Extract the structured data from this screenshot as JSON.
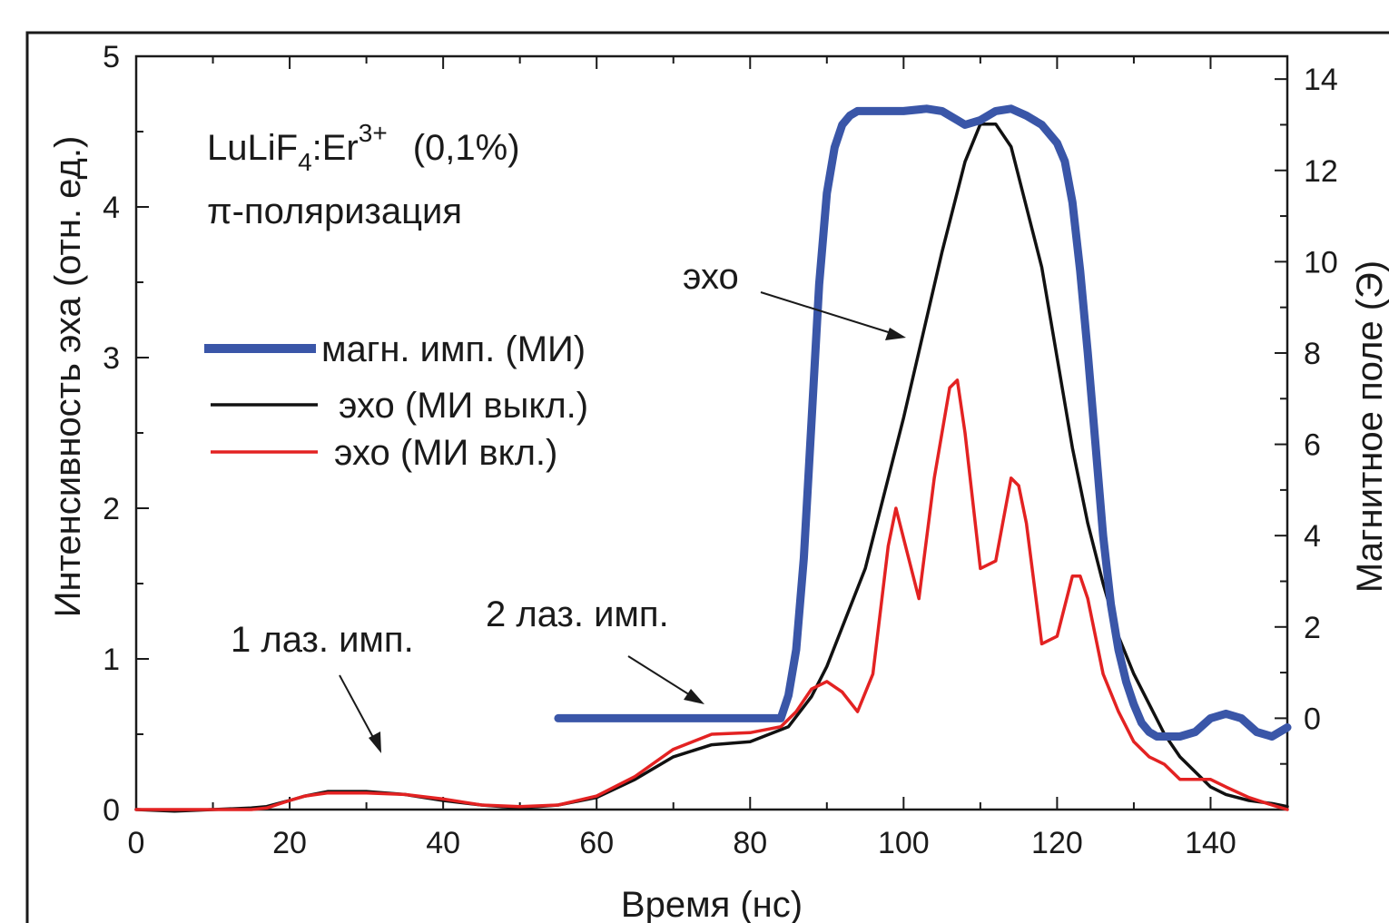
{
  "chart_data": {
    "type": "line",
    "xlabel": "Время (нс)",
    "ylabel": "Интенсивность эха (отн. ед.)",
    "y2label": "Магнитное поле (Э)",
    "xlim": [
      0,
      150
    ],
    "ylim": [
      0,
      5
    ],
    "y2lim": [
      -2,
      14.5
    ],
    "x_ticks": [
      0,
      20,
      40,
      60,
      80,
      100,
      120,
      140
    ],
    "y_ticks": [
      0,
      1,
      2,
      3,
      4,
      5
    ],
    "y2_ticks": [
      0,
      2,
      4,
      6,
      8,
      10,
      12,
      14
    ],
    "grid": false,
    "legend_position": "middle-left",
    "annotations": {
      "sample_base": "LuLiF",
      "sample_sub": "4",
      "sample_mid": ":Er",
      "sample_sup": "3+",
      "sample_conc": "(0,1%)",
      "polarization": "π-поляризация",
      "echo": "эхо",
      "laser1": "1 лаз. имп.",
      "laser2": "2 лаз. имп."
    },
    "series": [
      {
        "name": "магн. имп. (МИ)",
        "axis": "right",
        "color": "#3a56a8",
        "x": [
          55,
          60,
          70,
          80,
          84,
          85,
          86,
          87,
          88,
          89,
          90,
          91,
          92,
          93,
          94,
          95,
          100,
          103,
          105,
          107,
          108,
          110,
          112,
          114,
          116,
          118,
          120,
          121,
          122,
          123,
          124,
          125,
          126,
          127,
          128,
          129,
          130,
          131,
          132,
          133,
          134,
          136,
          138,
          140,
          142,
          144,
          146,
          148,
          150
        ],
        "y": [
          0,
          0,
          0,
          0,
          0,
          0.5,
          1.5,
          3.5,
          6.5,
          9.5,
          11.5,
          12.5,
          13.0,
          13.2,
          13.3,
          13.3,
          13.3,
          13.35,
          13.3,
          13.1,
          13.0,
          13.1,
          13.3,
          13.35,
          13.2,
          13.0,
          12.6,
          12.2,
          11.3,
          9.8,
          8.0,
          6.0,
          4.0,
          2.5,
          1.5,
          0.8,
          0.3,
          -0.1,
          -0.3,
          -0.4,
          -0.4,
          -0.4,
          -0.3,
          0,
          0.1,
          0,
          -0.3,
          -0.4,
          -0.2
        ]
      },
      {
        "name": "эхо (МИ выкл.)",
        "axis": "left",
        "color": "#111111",
        "x": [
          0,
          5,
          10,
          15,
          17,
          20,
          22,
          25,
          30,
          35,
          40,
          45,
          50,
          55,
          60,
          65,
          70,
          75,
          80,
          85,
          88,
          90,
          95,
          100,
          105,
          108,
          110,
          112,
          114,
          116,
          118,
          120,
          122,
          124,
          126,
          128,
          130,
          132,
          134,
          136,
          138,
          140,
          142,
          145,
          148,
          150
        ],
        "y": [
          0,
          -0.01,
          0,
          0.01,
          0.02,
          0.06,
          0.09,
          0.12,
          0.12,
          0.1,
          0.06,
          0.03,
          0.01,
          0.03,
          0.08,
          0.2,
          0.35,
          0.43,
          0.45,
          0.55,
          0.75,
          0.95,
          1.6,
          2.6,
          3.7,
          4.3,
          4.55,
          4.55,
          4.4,
          4.0,
          3.6,
          3.0,
          2.4,
          1.9,
          1.5,
          1.15,
          0.9,
          0.7,
          0.5,
          0.35,
          0.25,
          0.15,
          0.1,
          0.06,
          0.04,
          0.02
        ]
      },
      {
        "name": "эхо (МИ вкл.)",
        "axis": "left",
        "color": "#e32222",
        "x": [
          0,
          5,
          10,
          15,
          17,
          20,
          22,
          25,
          30,
          35,
          40,
          45,
          50,
          55,
          60,
          65,
          70,
          75,
          80,
          84,
          86,
          88,
          90,
          92,
          94,
          96,
          98,
          99,
          100,
          102,
          104,
          106,
          107,
          108,
          110,
          112,
          114,
          115,
          116,
          118,
          120,
          122,
          123,
          124,
          126,
          128,
          130,
          132,
          134,
          136,
          140,
          142,
          145,
          148,
          150
        ],
        "y": [
          0,
          0,
          0,
          0,
          0.01,
          0.06,
          0.09,
          0.11,
          0.11,
          0.1,
          0.07,
          0.03,
          0.02,
          0.03,
          0.09,
          0.22,
          0.4,
          0.5,
          0.51,
          0.55,
          0.65,
          0.8,
          0.85,
          0.78,
          0.65,
          0.9,
          1.75,
          2.0,
          1.8,
          1.4,
          2.2,
          2.8,
          2.85,
          2.5,
          1.6,
          1.65,
          2.2,
          2.15,
          1.9,
          1.1,
          1.15,
          1.55,
          1.55,
          1.4,
          0.9,
          0.65,
          0.45,
          0.35,
          0.3,
          0.2,
          0.2,
          0.15,
          0.08,
          0.03,
          0
        ]
      }
    ]
  }
}
